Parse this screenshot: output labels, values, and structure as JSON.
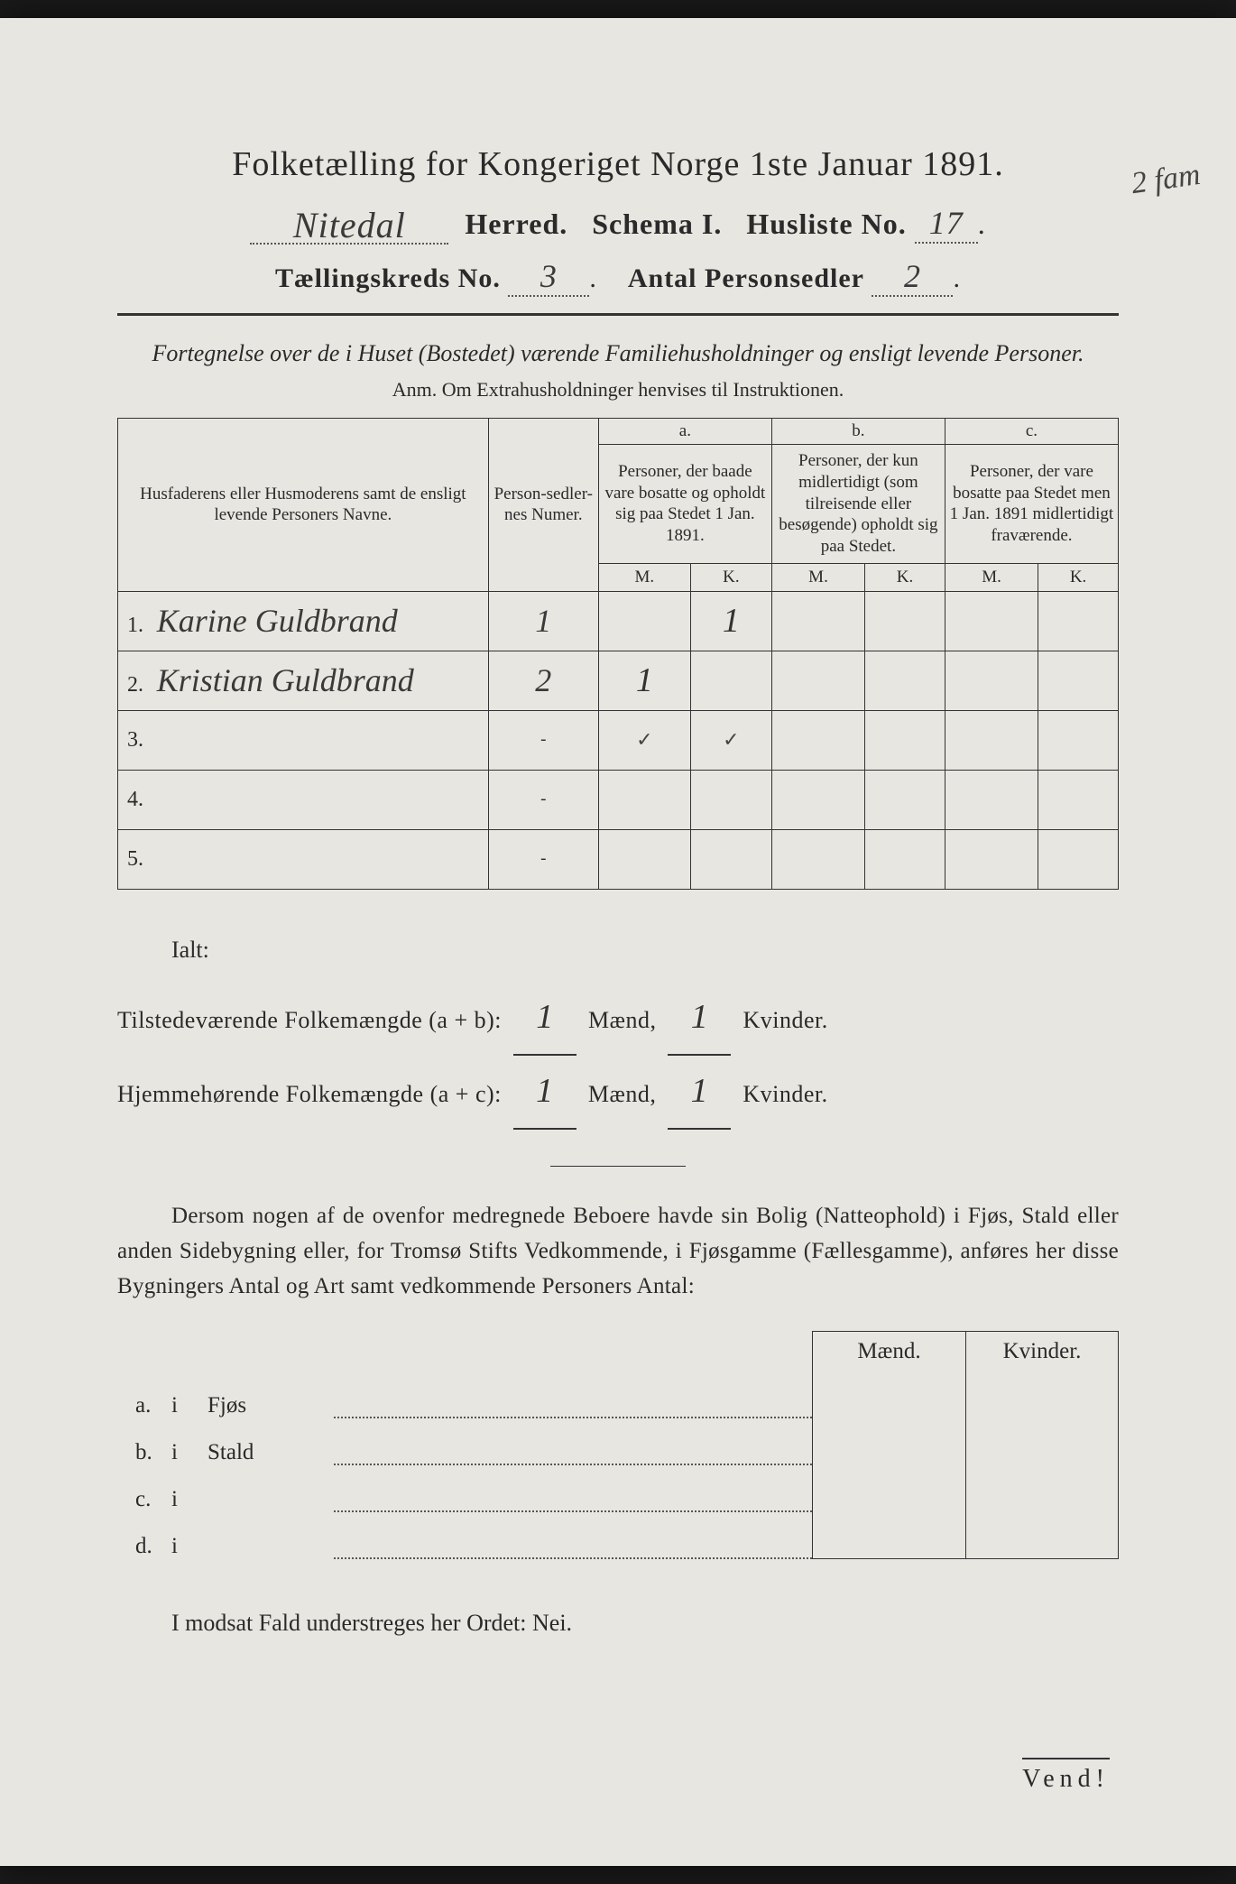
{
  "header": {
    "title": "Folketælling for Kongeriget Norge 1ste Januar 1891.",
    "herred_name": "Nitedal",
    "herred_label": "Herred.",
    "schema_label": "Schema I.",
    "husliste_label": "Husliste No.",
    "husliste_no": "17",
    "annotation": "2 fam",
    "kreds_label": "Tællingskreds No.",
    "kreds_no": "3",
    "antal_label": "Antal Personsedler",
    "antal_val": "2"
  },
  "subtitle": "Fortegnelse over de i Huset (Bostedet) værende Familiehusholdninger og ensligt levende Personer.",
  "anm": "Anm. Om Extrahusholdninger henvises til Instruktionen.",
  "table": {
    "col_name": "Husfaderens eller Husmoderens samt de ensligt levende Personers Navne.",
    "col_num": "Person-sedler-nes Numer.",
    "a_label": "a.",
    "a_desc": "Personer, der baade vare bosatte og opholdt sig paa Stedet 1 Jan. 1891.",
    "b_label": "b.",
    "b_desc": "Personer, der kun midlertidigt (som tilreisende eller besøgende) opholdt sig paa Stedet.",
    "c_label": "c.",
    "c_desc": "Personer, der vare bosatte paa Stedet men 1 Jan. 1891 midlertidigt fraværende.",
    "m": "M.",
    "k": "K.",
    "rows": [
      {
        "n": "1.",
        "name": "Karine Guldbrand",
        "num": "1",
        "a_m": "",
        "a_k": "1",
        "b_m": "",
        "b_k": "",
        "c_m": "",
        "c_k": ""
      },
      {
        "n": "2.",
        "name": "Kristian Guldbrand",
        "num": "2",
        "a_m": "1",
        "a_k": "",
        "b_m": "",
        "b_k": "",
        "c_m": "",
        "c_k": ""
      },
      {
        "n": "3.",
        "name": "",
        "num": "",
        "a_m": "✓",
        "a_k": "✓",
        "b_m": "",
        "b_k": "",
        "c_m": "",
        "c_k": ""
      },
      {
        "n": "4.",
        "name": "",
        "num": "",
        "a_m": "",
        "a_k": "",
        "b_m": "",
        "b_k": "",
        "c_m": "",
        "c_k": ""
      },
      {
        "n": "5.",
        "name": "",
        "num": "",
        "a_m": "",
        "a_k": "",
        "b_m": "",
        "b_k": "",
        "c_m": "",
        "c_k": ""
      }
    ]
  },
  "ialt": {
    "title": "Ialt:",
    "row1_label": "Tilstedeværende Folkemængde (a + b):",
    "row2_label": "Hjemmehørende Folkemængde (a + c):",
    "maend": "Mænd,",
    "kvinder": "Kvinder.",
    "r1_m": "1",
    "r1_k": "1",
    "r2_m": "1",
    "r2_k": "1"
  },
  "para": "Dersom nogen af de ovenfor medregnede Beboere havde sin Bolig (Natteophold) i Fjøs, Stald eller anden Sidebygning eller, for Tromsø Stifts Vedkommende, i Fjøsgamme (Fællesgamme), anføres her disse Bygningers Antal og Art samt vedkommende Personers Antal:",
  "bygn": {
    "head_m": "Mænd.",
    "head_k": "Kvinder.",
    "rows": [
      {
        "l": "a.",
        "i": "i",
        "name": "Fjøs"
      },
      {
        "l": "b.",
        "i": "i",
        "name": "Stald"
      },
      {
        "l": "c.",
        "i": "i",
        "name": ""
      },
      {
        "l": "d.",
        "i": "i",
        "name": ""
      }
    ]
  },
  "nei": "I modsat Fald understreges her Ordet: Nei.",
  "vend": "Vend!",
  "colors": {
    "paper": "#e8e6e0",
    "ink": "#2a2a2a",
    "hand": "#3a3a3a",
    "bg": "#1a1a1a"
  }
}
